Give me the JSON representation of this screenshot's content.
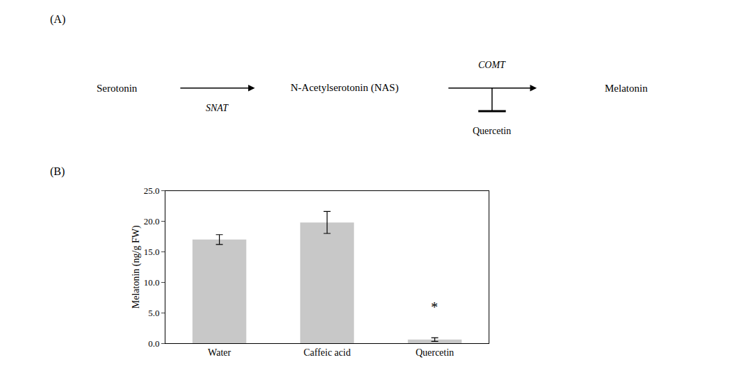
{
  "chart_data": {
    "type": "bar",
    "categories": [
      "Water",
      "Caffeic acid",
      "Quercetin"
    ],
    "values": [
      17.0,
      19.8,
      0.6
    ],
    "errors": [
      0.8,
      1.8,
      0.3
    ],
    "color": "#c8c8c8",
    "ylabel": "Melatonin (ng/g FW)",
    "ylim": [
      0,
      25.0
    ],
    "yticks": [
      {
        "value": 0.0,
        "label": "0.0"
      },
      {
        "value": 5.0,
        "label": "5.0"
      },
      {
        "value": 10.0,
        "label": "10.0"
      },
      {
        "value": 15.0,
        "label": "15.0"
      },
      {
        "value": 20.0,
        "label": "20.0"
      },
      {
        "value": 25.0,
        "label": "25.0"
      }
    ],
    "grid": false,
    "annotations": [
      {
        "text": "*",
        "x": 2,
        "y": 4.5
      },
      {
        "text": "(A)"
      },
      {
        "text": "Serotonin"
      },
      {
        "text": "SNAT"
      },
      {
        "text": "N-Acetylserotonin (NAS)"
      },
      {
        "text": "COMT"
      },
      {
        "text": "Quercetin"
      },
      {
        "text": "Melatonin"
      },
      {
        "text": "(B)"
      }
    ]
  }
}
